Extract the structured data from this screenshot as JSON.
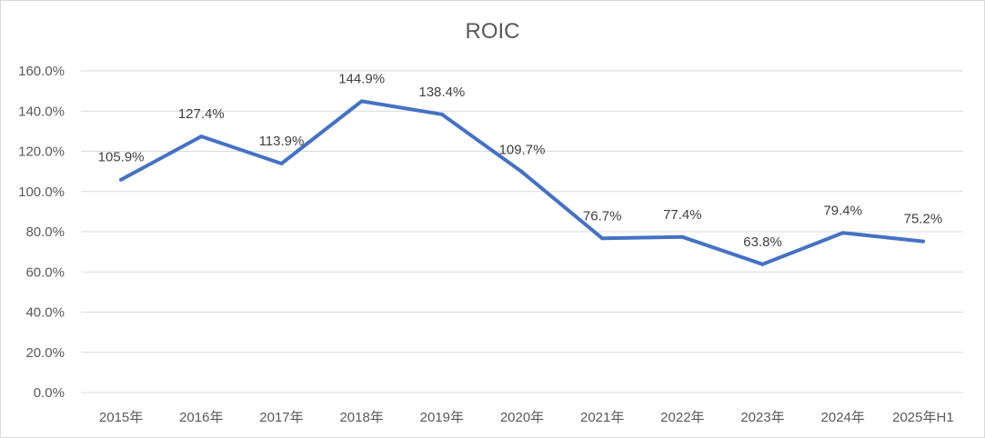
{
  "chart_data": {
    "type": "line",
    "title": "ROIC",
    "xlabel": "",
    "ylabel": "",
    "categories": [
      "2015年",
      "2016年",
      "2017年",
      "2018年",
      "2019年",
      "2020年",
      "2021年",
      "2022年",
      "2023年",
      "2024年",
      "2025年H1"
    ],
    "series": [
      {
        "values": [
          105.9,
          127.4,
          113.9,
          144.9,
          138.4,
          109.7,
          76.7,
          77.4,
          63.8,
          79.4,
          75.2
        ],
        "labels": [
          "105.9%",
          "127.4%",
          "113.9%",
          "144.9%",
          "138.4%",
          "109.7%",
          "76.7%",
          "77.4%",
          "63.8%",
          "79.4%",
          "75.2%"
        ],
        "color": "#4472c4"
      }
    ],
    "ylim": [
      0,
      160
    ],
    "yticks": [
      "0.0%",
      "20.0%",
      "40.0%",
      "60.0%",
      "80.0%",
      "100.0%",
      "120.0%",
      "140.0%",
      "160.0%"
    ],
    "grid": true,
    "legend": "none"
  }
}
